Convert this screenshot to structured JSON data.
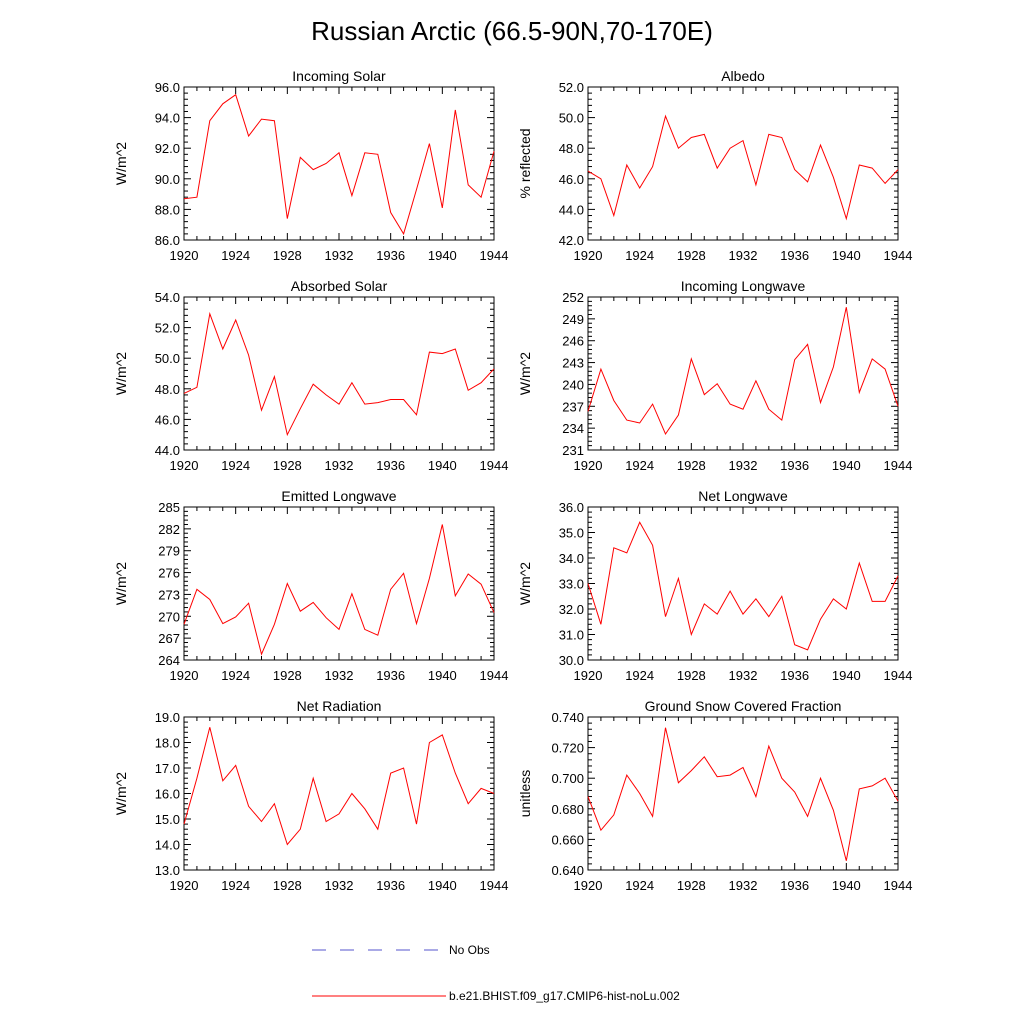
{
  "title": "Russian Arctic (66.5-90N,70-170E)",
  "colors": {
    "model": "#ff0000",
    "obs": "#5555cc",
    "frame": "#000000"
  },
  "legend": {
    "obs_label": "No Obs",
    "model_label": "b.e21.BHIST.f09_g17.CMIP6-hist-noLu.002"
  },
  "chart_data": [
    {
      "type": "line",
      "title": "Incoming Solar",
      "ylabel": "W/m^2",
      "xlim": [
        1920,
        1944
      ],
      "ylim": [
        86,
        96
      ],
      "xticks": [
        "1920",
        "1924",
        "1928",
        "1932",
        "1936",
        "1940",
        "1944"
      ],
      "yticks": [
        "86.0",
        "88.0",
        "90.0",
        "92.0",
        "94.0",
        "96.0"
      ],
      "series": [
        {
          "x": [
            1920,
            1921,
            1922,
            1923,
            1924,
            1925,
            1926,
            1927,
            1928,
            1929,
            1930,
            1931,
            1932,
            1933,
            1934,
            1935,
            1936,
            1937,
            1938,
            1939,
            1940,
            1941,
            1942,
            1943,
            1944
          ],
          "values": [
            88.7,
            88.8,
            93.8,
            94.9,
            95.5,
            92.8,
            93.9,
            93.8,
            87.4,
            91.4,
            90.6,
            91.0,
            91.7,
            88.9,
            91.7,
            91.6,
            87.8,
            86.4,
            89.3,
            92.3,
            88.1,
            94.5,
            89.6,
            88.8,
            91.8
          ]
        }
      ]
    },
    {
      "type": "line",
      "title": "Albedo",
      "ylabel": "% reflected",
      "xlim": [
        1920,
        1944
      ],
      "ylim": [
        42,
        52
      ],
      "xticks": [
        "1920",
        "1924",
        "1928",
        "1932",
        "1936",
        "1940",
        "1944"
      ],
      "yticks": [
        "42.0",
        "44.0",
        "46.0",
        "48.0",
        "50.0",
        "52.0"
      ],
      "series": [
        {
          "x": [
            1920,
            1921,
            1922,
            1923,
            1924,
            1925,
            1926,
            1927,
            1928,
            1929,
            1930,
            1931,
            1932,
            1933,
            1934,
            1935,
            1936,
            1937,
            1938,
            1939,
            1940,
            1941,
            1942,
            1943,
            1944
          ],
          "values": [
            46.5,
            46.0,
            43.6,
            46.9,
            45.4,
            46.8,
            50.1,
            48.0,
            48.7,
            48.9,
            46.7,
            48.0,
            48.5,
            45.6,
            48.9,
            48.7,
            46.6,
            45.8,
            48.2,
            46.1,
            43.4,
            46.9,
            46.7,
            45.7,
            46.6
          ]
        }
      ]
    },
    {
      "type": "line",
      "title": "Absorbed Solar",
      "ylabel": "W/m^2",
      "xlim": [
        1920,
        1944
      ],
      "ylim": [
        44,
        54
      ],
      "xticks": [
        "1920",
        "1924",
        "1928",
        "1932",
        "1936",
        "1940",
        "1944"
      ],
      "yticks": [
        "44.0",
        "46.0",
        "48.0",
        "50.0",
        "52.0",
        "54.0"
      ],
      "series": [
        {
          "x": [
            1920,
            1921,
            1922,
            1923,
            1924,
            1925,
            1926,
            1927,
            1928,
            1929,
            1930,
            1931,
            1932,
            1933,
            1934,
            1935,
            1936,
            1937,
            1938,
            1939,
            1940,
            1941,
            1942,
            1943,
            1944
          ],
          "values": [
            47.7,
            48.1,
            52.9,
            50.6,
            52.5,
            50.2,
            46.6,
            48.8,
            45.0,
            46.7,
            48.3,
            47.6,
            47.0,
            48.4,
            47.0,
            47.1,
            47.3,
            47.3,
            46.3,
            50.4,
            50.3,
            50.6,
            47.9,
            48.4,
            49.3
          ]
        }
      ]
    },
    {
      "type": "line",
      "title": "Incoming Longwave",
      "ylabel": "W/m^2",
      "xlim": [
        1920,
        1944
      ],
      "ylim": [
        231,
        252
      ],
      "xticks": [
        "1920",
        "1924",
        "1928",
        "1932",
        "1936",
        "1940",
        "1944"
      ],
      "yticks": [
        "231",
        "234",
        "237",
        "240",
        "243",
        "246",
        "249",
        "252"
      ],
      "series": [
        {
          "x": [
            1920,
            1921,
            1922,
            1923,
            1924,
            1925,
            1926,
            1927,
            1928,
            1929,
            1930,
            1931,
            1932,
            1933,
            1934,
            1935,
            1936,
            1937,
            1938,
            1939,
            1940,
            1941,
            1942,
            1943,
            1944
          ],
          "values": [
            236.3,
            242.1,
            237.8,
            235.1,
            234.7,
            237.3,
            233.2,
            235.8,
            243.5,
            238.6,
            240.1,
            237.3,
            236.6,
            240.5,
            236.6,
            235.1,
            243.4,
            245.5,
            237.5,
            242.4,
            250.6,
            238.9,
            243.5,
            242.1,
            237.0
          ]
        }
      ]
    },
    {
      "type": "line",
      "title": "Emitted Longwave",
      "ylabel": "W/m^2",
      "xlim": [
        1920,
        1944
      ],
      "ylim": [
        264,
        285
      ],
      "xticks": [
        "1920",
        "1924",
        "1928",
        "1932",
        "1936",
        "1940",
        "1944"
      ],
      "yticks": [
        "264",
        "267",
        "270",
        "273",
        "276",
        "279",
        "282",
        "285"
      ],
      "series": [
        {
          "x": [
            1920,
            1921,
            1922,
            1923,
            1924,
            1925,
            1926,
            1927,
            1928,
            1929,
            1930,
            1931,
            1932,
            1933,
            1934,
            1935,
            1936,
            1937,
            1938,
            1939,
            1940,
            1941,
            1942,
            1943,
            1944
          ],
          "values": [
            268.9,
            273.7,
            272.3,
            269.0,
            269.9,
            271.8,
            264.8,
            268.9,
            274.5,
            270.7,
            271.9,
            269.8,
            268.2,
            273.1,
            268.2,
            267.4,
            273.7,
            275.9,
            269.0,
            275.2,
            282.6,
            272.8,
            275.8,
            274.4,
            270.5
          ]
        }
      ]
    },
    {
      "type": "line",
      "title": "Net Longwave",
      "ylabel": "W/m^2",
      "xlim": [
        1920,
        1944
      ],
      "ylim": [
        30,
        36
      ],
      "xticks": [
        "1920",
        "1924",
        "1928",
        "1932",
        "1936",
        "1940",
        "1944"
      ],
      "yticks": [
        "30.0",
        "31.0",
        "32.0",
        "33.0",
        "34.0",
        "35.0",
        "36.0"
      ],
      "series": [
        {
          "x": [
            1920,
            1921,
            1922,
            1923,
            1924,
            1925,
            1926,
            1927,
            1928,
            1929,
            1930,
            1931,
            1932,
            1933,
            1934,
            1935,
            1936,
            1937,
            1938,
            1939,
            1940,
            1941,
            1942,
            1943,
            1944
          ],
          "values": [
            33.0,
            31.4,
            34.4,
            34.2,
            35.4,
            34.5,
            31.7,
            33.2,
            31.0,
            32.2,
            31.8,
            32.7,
            31.8,
            32.4,
            31.7,
            32.5,
            30.6,
            30.4,
            31.6,
            32.4,
            32.0,
            33.8,
            32.3,
            32.3,
            33.3
          ]
        }
      ]
    },
    {
      "type": "line",
      "title": "Net Radiation",
      "ylabel": "W/m^2",
      "xlim": [
        1920,
        1944
      ],
      "ylim": [
        13,
        19
      ],
      "xticks": [
        "1920",
        "1924",
        "1928",
        "1932",
        "1936",
        "1940",
        "1944"
      ],
      "yticks": [
        "13.0",
        "14.0",
        "15.0",
        "16.0",
        "17.0",
        "18.0",
        "19.0"
      ],
      "series": [
        {
          "x": [
            1920,
            1921,
            1922,
            1923,
            1924,
            1925,
            1926,
            1927,
            1928,
            1929,
            1930,
            1931,
            1932,
            1933,
            1934,
            1935,
            1936,
            1937,
            1938,
            1939,
            1940,
            1941,
            1942,
            1943,
            1944
          ],
          "values": [
            14.8,
            16.6,
            18.6,
            16.5,
            17.1,
            15.5,
            14.9,
            15.6,
            14.0,
            14.6,
            16.6,
            14.9,
            15.2,
            16.0,
            15.4,
            14.6,
            16.8,
            17.0,
            14.8,
            18.0,
            18.3,
            16.8,
            15.6,
            16.2,
            16.0
          ]
        }
      ]
    },
    {
      "type": "line",
      "title": "Ground Snow Covered Fraction",
      "ylabel": "unitless",
      "xlim": [
        1920,
        1944
      ],
      "ylim": [
        0.64,
        0.74
      ],
      "xticks": [
        "1920",
        "1924",
        "1928",
        "1932",
        "1936",
        "1940",
        "1944"
      ],
      "yticks": [
        "0.640",
        "0.660",
        "0.680",
        "0.700",
        "0.720",
        "0.740"
      ],
      "series": [
        {
          "x": [
            1920,
            1921,
            1922,
            1923,
            1924,
            1925,
            1926,
            1927,
            1928,
            1929,
            1930,
            1931,
            1932,
            1933,
            1934,
            1935,
            1936,
            1937,
            1938,
            1939,
            1940,
            1941,
            1942,
            1943,
            1944
          ],
          "values": [
            0.688,
            0.666,
            0.676,
            0.702,
            0.69,
            0.675,
            0.733,
            0.697,
            0.705,
            0.714,
            0.701,
            0.702,
            0.707,
            0.688,
            0.721,
            0.7,
            0.691,
            0.675,
            0.7,
            0.679,
            0.646,
            0.693,
            0.695,
            0.7,
            0.685
          ]
        }
      ]
    }
  ]
}
